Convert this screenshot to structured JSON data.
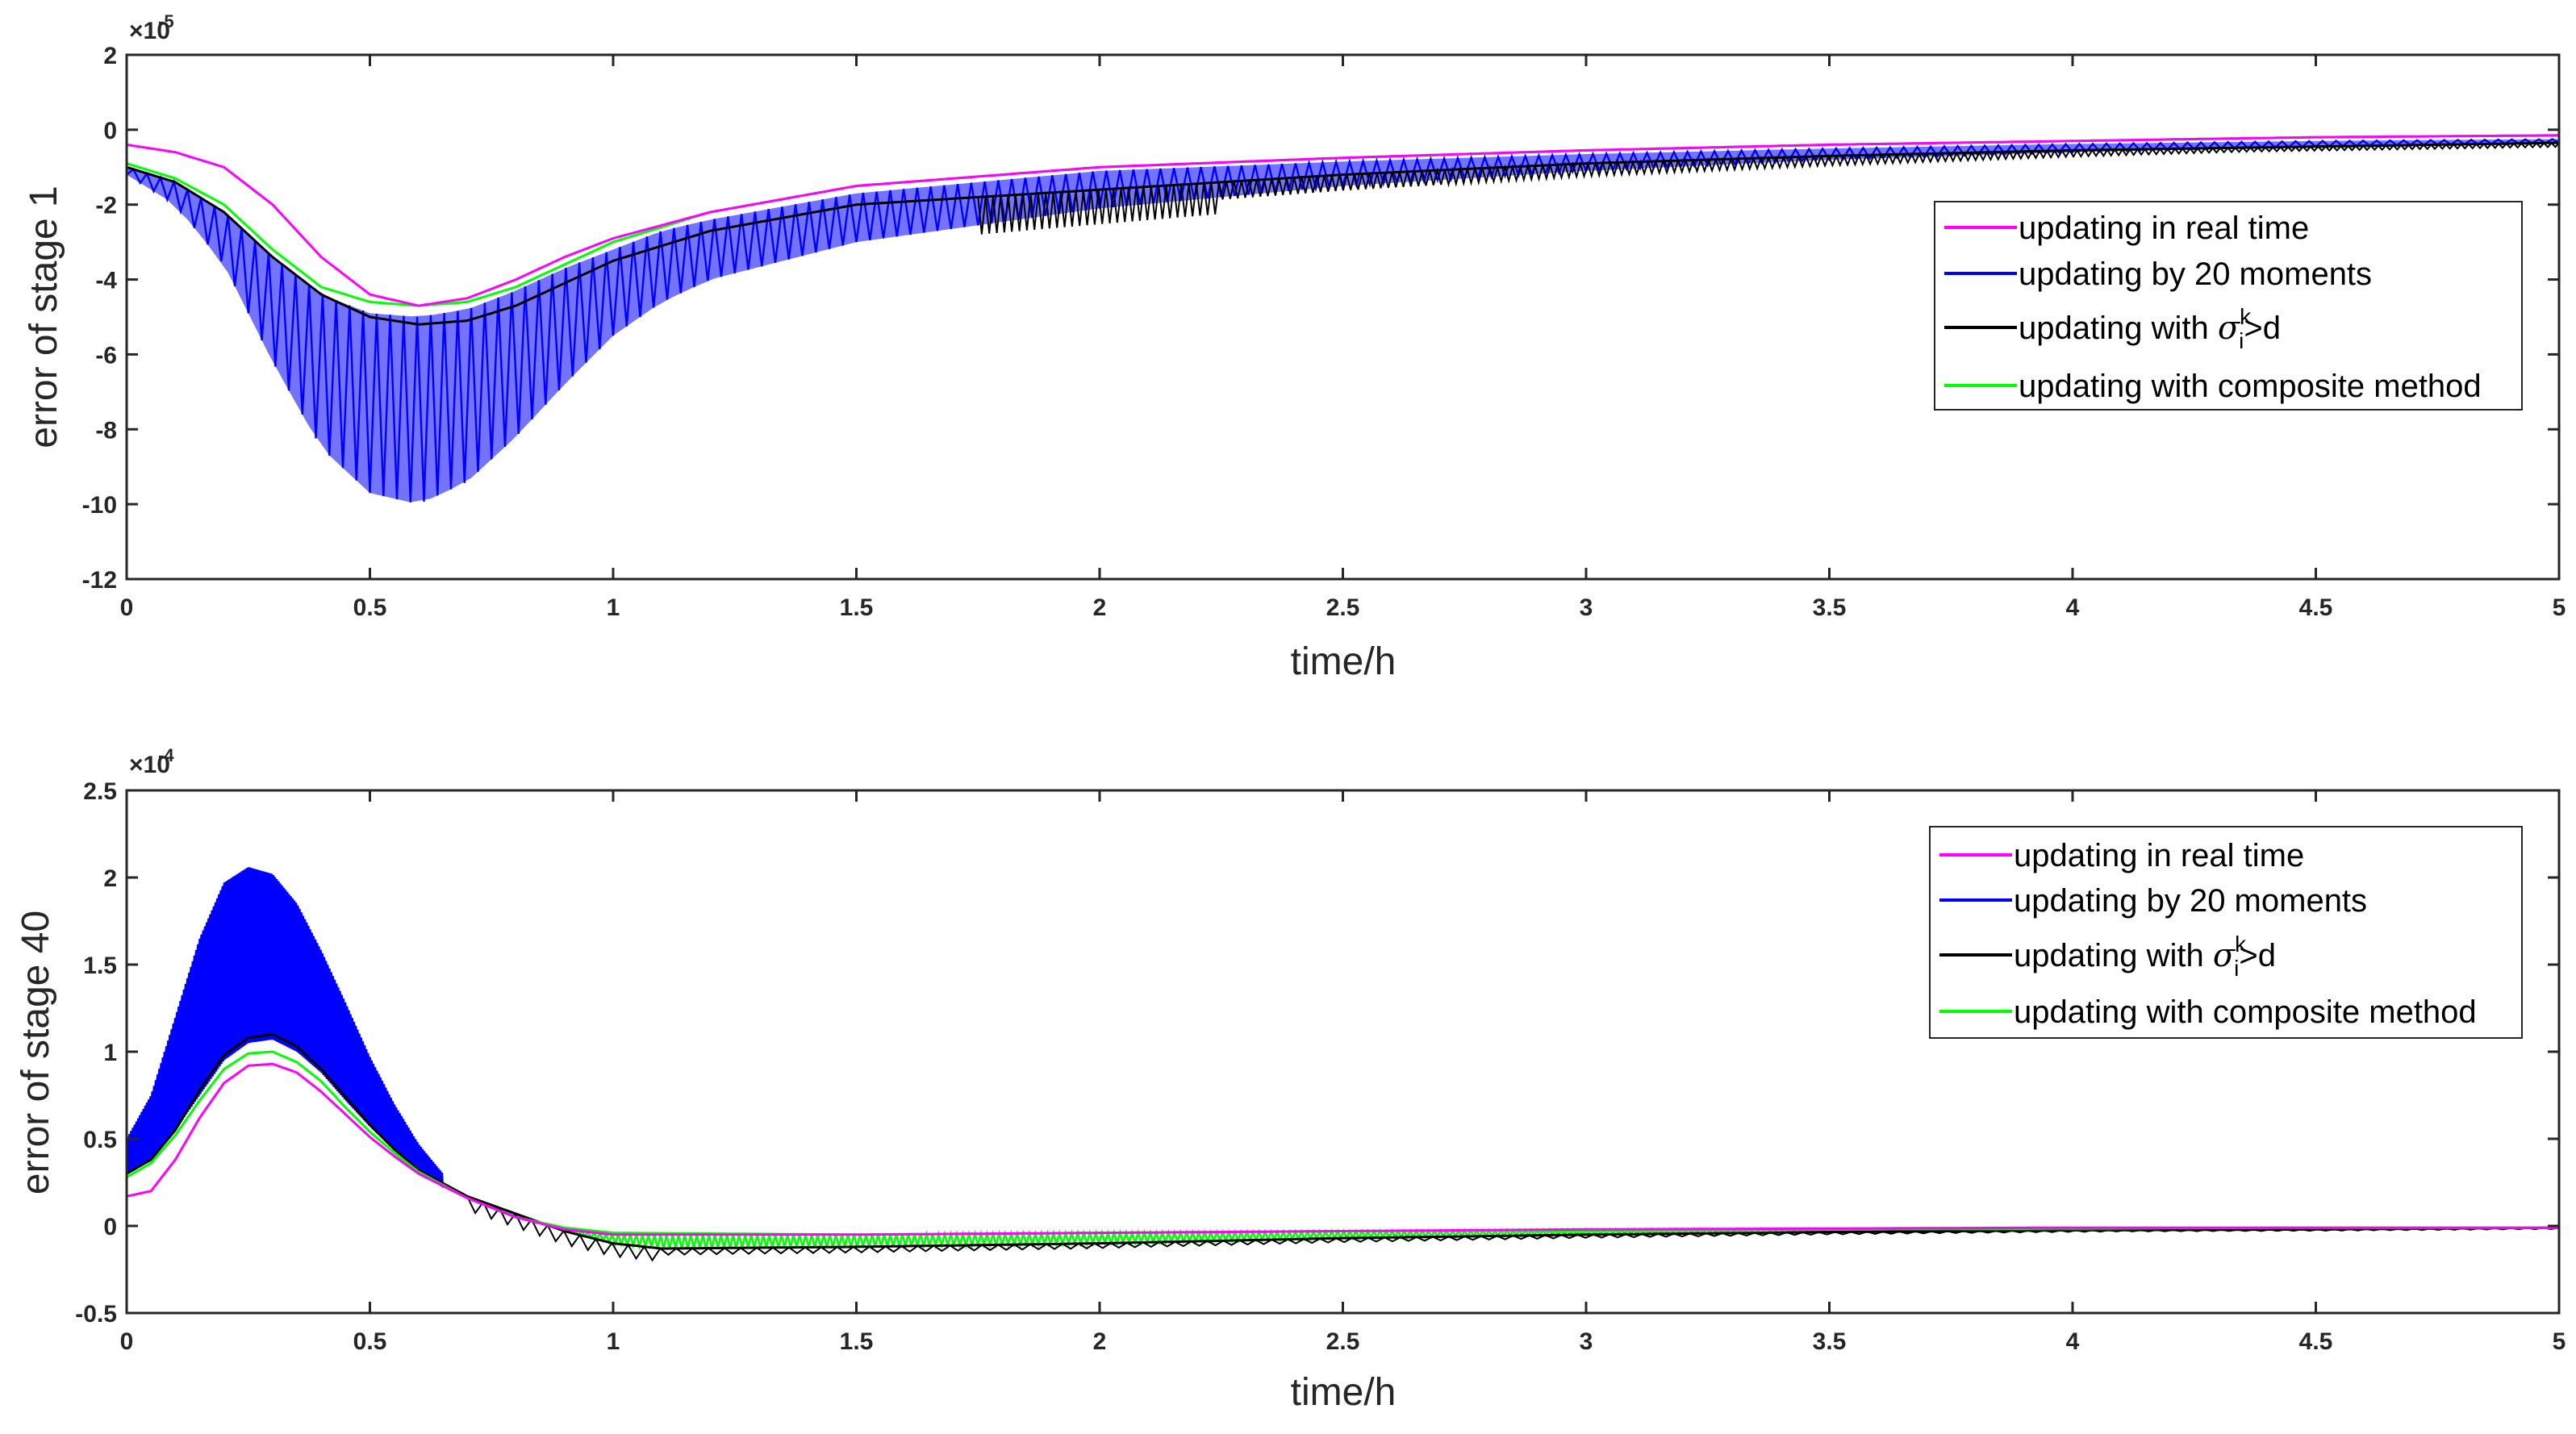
{
  "chart_data": [
    {
      "type": "line",
      "ylabel": "error of stage 1",
      "xlabel": "time/h",
      "y_exponent": "×10",
      "y_exponent_power": "-5",
      "xlim": [
        0,
        5
      ],
      "ylim": [
        -12,
        2
      ],
      "xticks": [
        0,
        0.5,
        1,
        1.5,
        2,
        2.5,
        3,
        3.5,
        4,
        4.5,
        5
      ],
      "xtick_labels": [
        "0",
        "0.5",
        "1",
        "1.5",
        "2",
        "2.5",
        "3",
        "3.5",
        "4",
        "4.5",
        "5"
      ],
      "yticks": [
        -12,
        -10,
        -8,
        -6,
        -4,
        -2,
        0,
        2
      ],
      "ytick_labels": [
        "-12",
        "-10",
        "-8",
        "-6",
        "-4",
        "-2",
        "0",
        "2"
      ],
      "legend_position": "right",
      "series": [
        {
          "name": "updating in real time",
          "color": "#ff00ff",
          "x": [
            0,
            0.1,
            0.2,
            0.3,
            0.4,
            0.5,
            0.6,
            0.7,
            0.8,
            0.9,
            1.0,
            1.2,
            1.5,
            2.0,
            2.5,
            3.0,
            3.5,
            4.0,
            4.5,
            5.0
          ],
          "y": [
            -0.4,
            -0.6,
            -1.0,
            -2.0,
            -3.4,
            -4.4,
            -4.7,
            -4.5,
            -4.0,
            -3.4,
            -2.9,
            -2.2,
            -1.5,
            -1.0,
            -0.75,
            -0.55,
            -0.4,
            -0.3,
            -0.2,
            -0.15
          ]
        },
        {
          "name": "updating by 20 moments",
          "color": "#0000ff",
          "x": [
            0,
            0.1,
            0.2,
            0.3,
            0.4,
            0.5,
            0.6,
            0.7,
            0.8,
            0.9,
            1.0,
            1.1,
            1.2,
            1.5,
            2.0,
            2.5,
            3.0,
            3.5,
            4.0,
            4.5,
            5.0
          ],
          "y_min": [
            -1.2,
            -2.0,
            -3.6,
            -6.2,
            -8.5,
            -9.7,
            -10.0,
            -9.4,
            -8.2,
            -6.8,
            -5.5,
            -4.6,
            -4.0,
            -3.0,
            -2.1,
            -1.5,
            -1.1,
            -0.8,
            -0.6,
            -0.45,
            -0.35
          ],
          "y_max": [
            -1.0,
            -1.4,
            -2.2,
            -3.4,
            -4.4,
            -4.9,
            -5.0,
            -4.8,
            -4.3,
            -3.7,
            -3.2,
            -2.7,
            -2.4,
            -1.7,
            -1.1,
            -0.85,
            -0.65,
            -0.5,
            -0.38,
            -0.3,
            -0.25
          ]
        },
        {
          "name": "updating with σ_i^k>d",
          "color": "#000000",
          "x": [
            0,
            0.1,
            0.2,
            0.3,
            0.4,
            0.5,
            0.6,
            0.7,
            0.8,
            0.9,
            1.0,
            1.2,
            1.5,
            2.0,
            2.5,
            3.0,
            3.5,
            4.0,
            4.5,
            5.0
          ],
          "y": [
            -1.0,
            -1.4,
            -2.2,
            -3.4,
            -4.4,
            -5.0,
            -5.2,
            -5.1,
            -4.7,
            -4.1,
            -3.5,
            -2.7,
            -2.0,
            -1.6,
            -1.2,
            -0.9,
            -0.7,
            -0.55,
            -0.45,
            -0.35
          ]
        },
        {
          "name": "updating with composite method",
          "color": "#00ff00",
          "x": [
            0,
            0.1,
            0.2,
            0.3,
            0.4,
            0.5,
            0.6,
            0.7,
            0.8,
            0.9,
            1.0,
            1.2,
            1.5,
            2.0,
            2.5,
            3.0,
            3.5,
            4.0,
            4.5,
            5.0
          ],
          "y": [
            -0.9,
            -1.3,
            -2.0,
            -3.2,
            -4.2,
            -4.6,
            -4.7,
            -4.6,
            -4.2,
            -3.6,
            -3.0,
            -2.2,
            -1.5,
            -1.0,
            -0.75,
            -0.55,
            -0.4,
            -0.3,
            -0.2,
            -0.15
          ]
        }
      ]
    },
    {
      "type": "line",
      "ylabel": "error of stage 40",
      "xlabel": "time/h",
      "y_exponent": "×10",
      "y_exponent_power": "-4",
      "xlim": [
        0,
        5
      ],
      "ylim": [
        -0.5,
        2.5
      ],
      "xticks": [
        0,
        0.5,
        1,
        1.5,
        2,
        2.5,
        3,
        3.5,
        4,
        4.5,
        5
      ],
      "xtick_labels": [
        "0",
        "0.5",
        "1",
        "1.5",
        "2",
        "2.5",
        "3",
        "3.5",
        "4",
        "4.5",
        "5"
      ],
      "yticks": [
        -0.5,
        0,
        0.5,
        1,
        1.5,
        2,
        2.5
      ],
      "ytick_labels": [
        "-0.5",
        "0",
        "0.5",
        "1",
        "1.5",
        "2",
        "2.5"
      ],
      "legend_position": "top-right",
      "series": [
        {
          "name": "updating in real time",
          "color": "#ff00ff",
          "x": [
            0,
            0.05,
            0.1,
            0.15,
            0.2,
            0.25,
            0.3,
            0.35,
            0.4,
            0.45,
            0.5,
            0.55,
            0.6,
            0.7,
            0.8,
            0.9,
            1.0,
            1.5,
            2.0,
            2.5,
            3.0,
            3.5,
            4.0,
            4.5,
            5.0
          ],
          "y": [
            0.17,
            0.2,
            0.38,
            0.62,
            0.82,
            0.92,
            0.93,
            0.88,
            0.77,
            0.64,
            0.51,
            0.4,
            0.3,
            0.16,
            0.05,
            -0.02,
            -0.05,
            -0.05,
            -0.04,
            -0.03,
            -0.02,
            -0.015,
            -0.01,
            -0.01,
            -0.01
          ]
        },
        {
          "name": "updating by 20 moments",
          "color": "#0000ff",
          "x": [
            0,
            0.05,
            0.1,
            0.15,
            0.2,
            0.25,
            0.3,
            0.35,
            0.4,
            0.45,
            0.5,
            0.55,
            0.6,
            0.65
          ],
          "y_min": [
            0.3,
            0.38,
            0.55,
            0.75,
            0.95,
            1.05,
            1.07,
            1.0,
            0.88,
            0.72,
            0.57,
            0.44,
            0.33,
            0.22
          ],
          "y_max": [
            0.5,
            0.75,
            1.2,
            1.65,
            1.97,
            2.06,
            2.02,
            1.85,
            1.58,
            1.28,
            0.97,
            0.7,
            0.47,
            0.3
          ]
        },
        {
          "name": "updating with σ_i^k>d",
          "color": "#000000",
          "x": [
            0,
            0.05,
            0.1,
            0.15,
            0.2,
            0.25,
            0.3,
            0.35,
            0.4,
            0.45,
            0.5,
            0.55,
            0.6,
            0.7,
            0.8,
            0.9,
            1.0,
            1.1,
            1.5,
            2.0,
            2.5,
            3.0,
            3.5,
            4.0,
            4.5,
            5.0
          ],
          "y": [
            0.3,
            0.38,
            0.55,
            0.78,
            0.98,
            1.08,
            1.1,
            1.03,
            0.9,
            0.74,
            0.58,
            0.44,
            0.32,
            0.17,
            0.07,
            -0.03,
            -0.1,
            -0.13,
            -0.12,
            -0.1,
            -0.07,
            -0.05,
            -0.035,
            -0.025,
            -0.02,
            -0.01
          ]
        },
        {
          "name": "updating with composite method",
          "color": "#00ff00",
          "x": [
            0,
            0.05,
            0.1,
            0.15,
            0.2,
            0.25,
            0.3,
            0.35,
            0.4,
            0.45,
            0.5,
            0.55,
            0.6,
            0.7,
            0.8,
            0.9,
            1.0,
            1.5,
            2.0,
            2.5,
            3.0,
            3.5,
            4.0,
            4.5,
            5.0
          ],
          "y": [
            0.28,
            0.36,
            0.52,
            0.72,
            0.9,
            0.99,
            1.0,
            0.94,
            0.83,
            0.68,
            0.54,
            0.42,
            0.31,
            0.16,
            0.05,
            -0.01,
            -0.04,
            -0.05,
            -0.04,
            -0.03,
            -0.025,
            -0.02,
            -0.015,
            -0.01,
            -0.01
          ]
        }
      ]
    }
  ]
}
